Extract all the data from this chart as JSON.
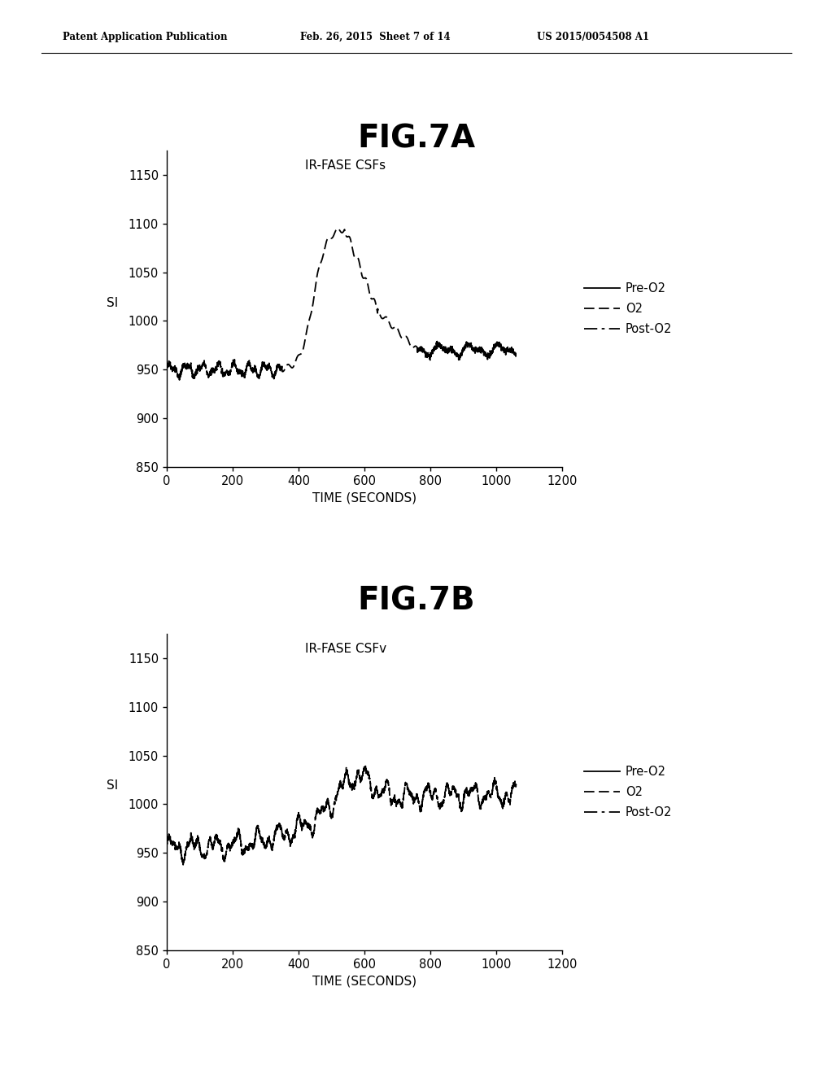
{
  "fig7a_title": "FIG.7A",
  "fig7b_title": "FIG.7B",
  "header_left": "Patent Application Publication",
  "header_center": "Feb. 26, 2015  Sheet 7 of 14",
  "header_right": "US 2015/0054508 A1",
  "plot_a_subtitle": "IR-FASE CSFs",
  "plot_b_subtitle": "IR-FASE CSFv",
  "xlabel": "TIME (SECONDS)",
  "ylabel": "SI",
  "ylim": [
    850,
    1175
  ],
  "xlim": [
    0,
    1200
  ],
  "yticks": [
    850,
    900,
    950,
    1000,
    1050,
    1100,
    1150
  ],
  "xticks": [
    0,
    200,
    400,
    600,
    800,
    1000,
    1200
  ],
  "legend_labels": [
    "Pre-O2",
    "O2",
    "Post-O2"
  ],
  "background_color": "#ffffff",
  "line_color": "#000000"
}
